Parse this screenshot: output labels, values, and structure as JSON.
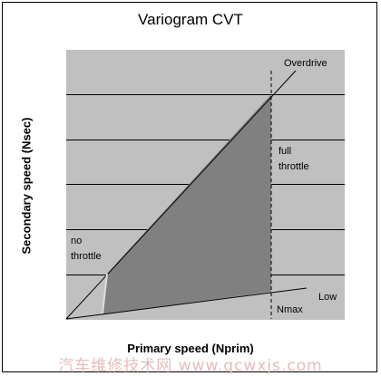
{
  "title": "Variogram CVT",
  "y_axis_label": "Secondary speed (Nsec)",
  "x_axis_label": "Primary speed (Nprim)",
  "labels": {
    "overdrive": "Overdrive",
    "full_line1": "full",
    "full_line2": "throttle",
    "no_line1": "no",
    "no_line2": "throttle",
    "nmax": "Nmax",
    "low": "Low"
  },
  "watermark": "汽车维修技术网 www.qcwxjs.com",
  "colors": {
    "plot_background": "#c0c0c0",
    "shaded_region": "#808080",
    "gridline": "#000000",
    "curve": "#000000"
  }
}
